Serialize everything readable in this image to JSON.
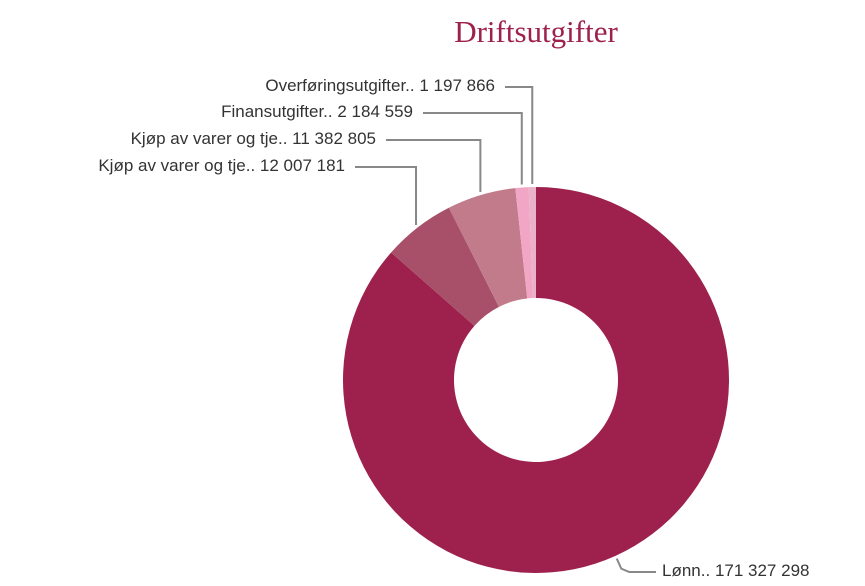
{
  "chart_data": {
    "type": "donut",
    "title": "Driftsutgifter",
    "categories": [
      "Lønn..",
      "Kjøp av varer og tje..",
      "Kjøp av varer og tje..",
      "Finansutgifter..",
      "Overføringsutgifter.."
    ],
    "values": [
      171327298,
      12007181,
      11382805,
      2184559,
      1197866
    ],
    "value_labels": [
      "171 327 298",
      "12 007 181",
      "11 382 805",
      "2 184 559",
      "1 197 866"
    ],
    "colors": [
      "#9e214d",
      "#a84f69",
      "#c27b8a",
      "#f2a6c6",
      "#eab2c8"
    ]
  }
}
